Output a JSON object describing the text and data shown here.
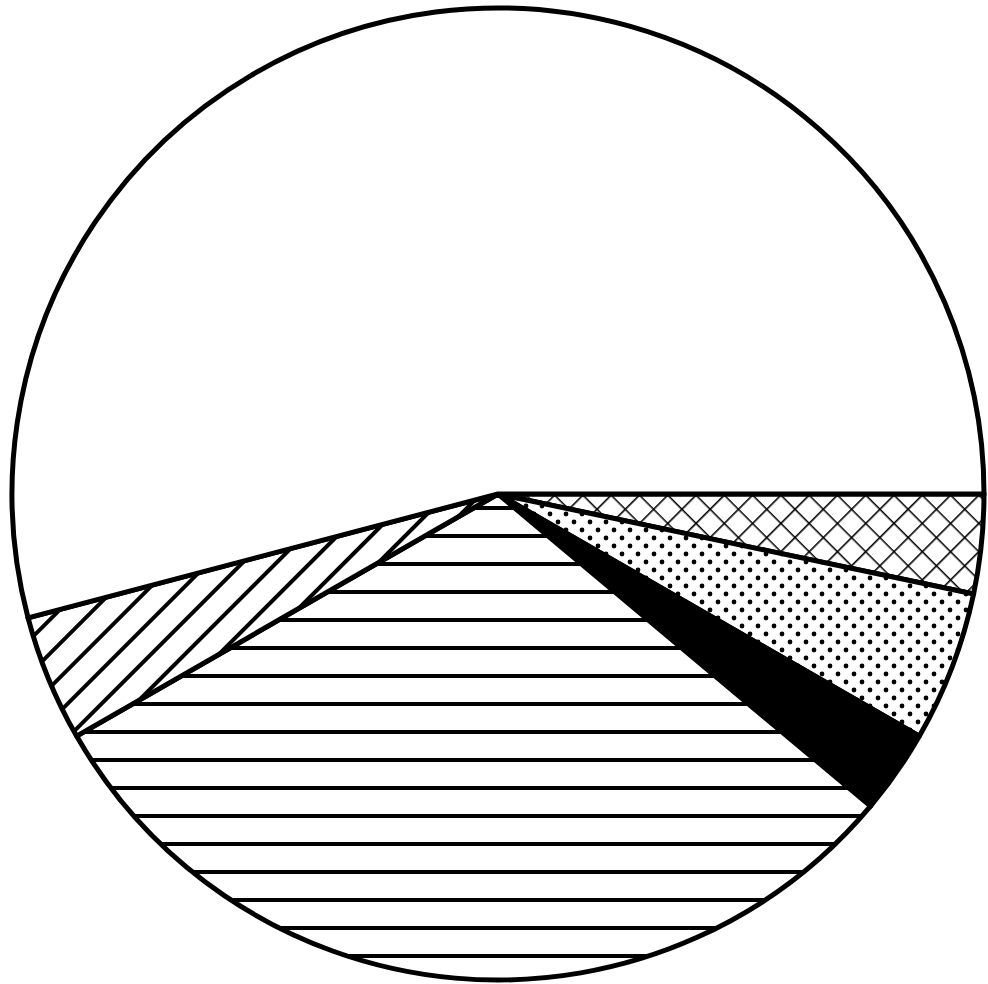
{
  "chart_data": {
    "type": "pie",
    "categories": [
      null,
      null,
      null,
      null,
      null,
      null
    ],
    "values": [
      3.3,
      5,
      2.8,
      30.6,
      4.2,
      54.1
    ],
    "colors": [
      "#000000",
      "#000000",
      "#000000",
      "#000000",
      "#000000",
      "#ffffff"
    ]
  }
}
